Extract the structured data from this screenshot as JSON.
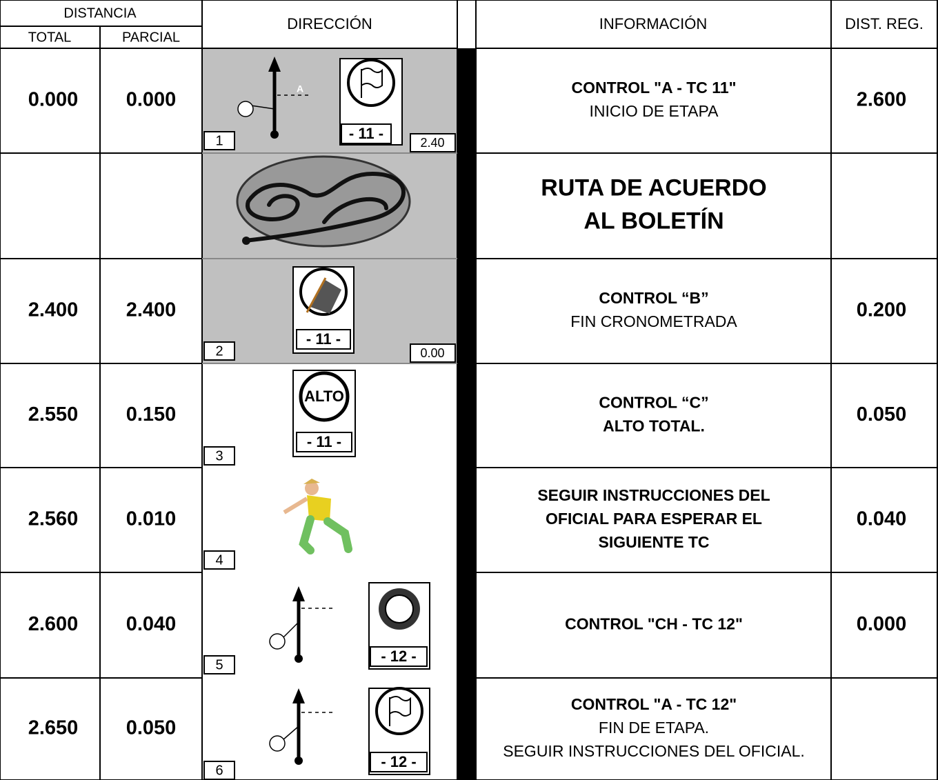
{
  "header": {
    "distancia": "DISTANCIA",
    "total": "TOTAL",
    "parcial": "PARCIAL",
    "direccion": "DIRECCIÓN",
    "informacion": "INFORMACIÓN",
    "dist_reg": "DIST. REG."
  },
  "rows": [
    {
      "total": "0.000",
      "parcial": "0.000",
      "number": "1",
      "marker": "A",
      "sign_label": "- 11 -",
      "partial_label": "2.40",
      "info": [
        {
          "text": "CONTROL \"A - TC 11\"",
          "bold": true
        },
        {
          "text": "INICIO DE ETAPA",
          "bold": false
        }
      ],
      "dist_reg": "2.600"
    },
    {
      "info": [
        {
          "text": "RUTA DE ACUERDO",
          "bold": true,
          "big": true
        },
        {
          "text": "AL BOLETÍN",
          "bold": true,
          "big": true
        }
      ]
    },
    {
      "total": "2.400",
      "parcial": "2.400",
      "number": "2",
      "sign_label": "- 11 -",
      "partial_label": "0.00",
      "info": [
        {
          "text": "CONTROL “B”",
          "bold": true
        },
        {
          "text": "FIN CRONOMETRADA",
          "bold": false
        }
      ],
      "dist_reg": "0.200"
    },
    {
      "total": "2.550",
      "parcial": "0.150",
      "number": "3",
      "sign_text": "ALTO",
      "sign_label": "- 11 -",
      "info": [
        {
          "text": "CONTROL “C”",
          "bold": true
        },
        {
          "text": "ALTO TOTAL.",
          "bold": true
        }
      ],
      "dist_reg": "0.050"
    },
    {
      "total": "2.560",
      "parcial": "0.010",
      "number": "4",
      "info": [
        {
          "text": "SEGUIR INSTRUCCIONES DEL",
          "bold": true
        },
        {
          "text": "OFICIAL PARA ESPERAR EL",
          "bold": true
        },
        {
          "text": "SIGUIENTE TC",
          "bold": true
        }
      ],
      "dist_reg": "0.040"
    },
    {
      "total": "2.600",
      "parcial": "0.040",
      "number": "5",
      "sign_label": "- 12 -",
      "info": [
        {
          "text": "CONTROL \"CH - TC 12\"",
          "bold": true
        }
      ],
      "dist_reg": "0.000"
    },
    {
      "total": "2.650",
      "parcial": "0.050",
      "number": "6",
      "sign_label": "- 12 -",
      "info": [
        {
          "text": "CONTROL \"A - TC 12\"",
          "bold": true
        },
        {
          "text": "FIN DE ETAPA.",
          "bold": false
        },
        {
          "text": "SEGUIR INSTRUCCIONES DEL OFICIAL.",
          "bold": false
        }
      ]
    }
  ]
}
